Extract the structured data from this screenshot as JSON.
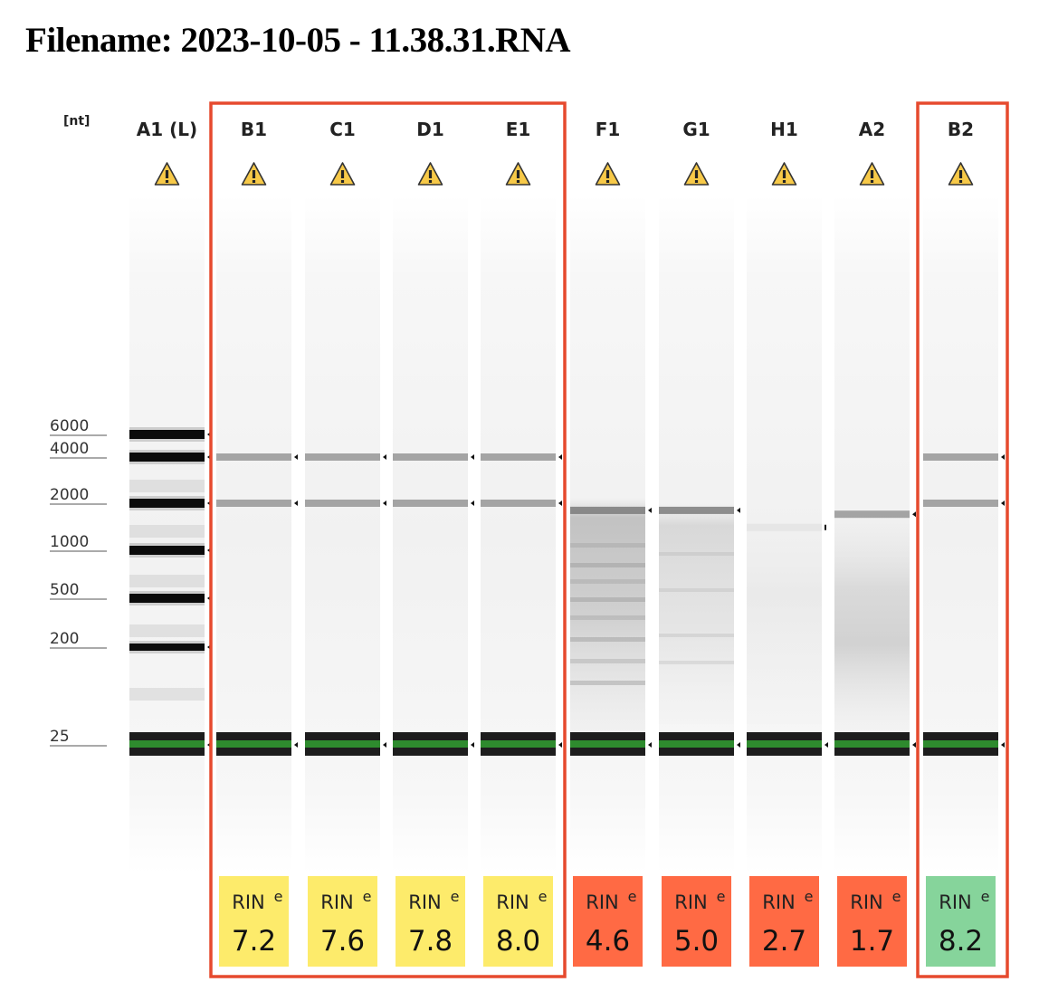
{
  "title": "Filename: 2023-10-05 - 11.38.31.RNA",
  "y_axis": {
    "unit": "[nt]",
    "ticks": [
      {
        "label": "6000",
        "value": 6000
      },
      {
        "label": "4000",
        "value": 4000
      },
      {
        "label": "2000",
        "value": 2000
      },
      {
        "label": "1000",
        "value": 1000
      },
      {
        "label": "500",
        "value": 500
      },
      {
        "label": "200",
        "value": 200
      },
      {
        "label": "25",
        "value": 25
      }
    ]
  },
  "colors": {
    "highlight_box": "#e64a2e",
    "marker_band": "#2e8b2e",
    "rin_yellow": "#fdeb6b",
    "rin_orange": "#ff6a44",
    "rin_green": "#86d49b",
    "warning_fill": "#f7c948"
  },
  "rin_prefix": "RIN",
  "rin_superscript": "e",
  "lanes": [
    {
      "id": "A1 (L)",
      "ladder": true,
      "warning": true,
      "peaks_nt": [
        6000,
        4000,
        2000,
        1000,
        500,
        200,
        25
      ]
    },
    {
      "id": "B1",
      "ladder": false,
      "warning": true,
      "rin": "7.2",
      "rin_color": "yellow",
      "peaks_nt": [
        4000,
        2000,
        25
      ]
    },
    {
      "id": "C1",
      "ladder": false,
      "warning": true,
      "rin": "7.6",
      "rin_color": "yellow",
      "peaks_nt": [
        4000,
        2000,
        25
      ]
    },
    {
      "id": "D1",
      "ladder": false,
      "warning": true,
      "rin": "7.8",
      "rin_color": "yellow",
      "peaks_nt": [
        4000,
        2000,
        25
      ]
    },
    {
      "id": "E1",
      "ladder": false,
      "warning": true,
      "rin": "8.0",
      "rin_color": "yellow",
      "peaks_nt": [
        4000,
        2000,
        25
      ]
    },
    {
      "id": "F1",
      "ladder": false,
      "warning": true,
      "rin": "4.6",
      "rin_color": "orange",
      "peaks_nt": [
        1800,
        25
      ]
    },
    {
      "id": "G1",
      "ladder": false,
      "warning": true,
      "rin": "5.0",
      "rin_color": "orange",
      "peaks_nt": [
        1800,
        25
      ]
    },
    {
      "id": "H1",
      "ladder": false,
      "warning": true,
      "rin": "2.7",
      "rin_color": "orange",
      "peaks_nt": [
        1400,
        25
      ]
    },
    {
      "id": "A2",
      "ladder": false,
      "warning": true,
      "rin": "1.7",
      "rin_color": "orange",
      "peaks_nt": [
        1700,
        25
      ]
    },
    {
      "id": "B2",
      "ladder": false,
      "warning": true,
      "rin": "8.2",
      "rin_color": "green",
      "peaks_nt": [
        4000,
        2000,
        25
      ]
    }
  ],
  "highlight_groups": [
    [
      "B1",
      "C1",
      "D1",
      "E1"
    ],
    [
      "B2"
    ]
  ]
}
